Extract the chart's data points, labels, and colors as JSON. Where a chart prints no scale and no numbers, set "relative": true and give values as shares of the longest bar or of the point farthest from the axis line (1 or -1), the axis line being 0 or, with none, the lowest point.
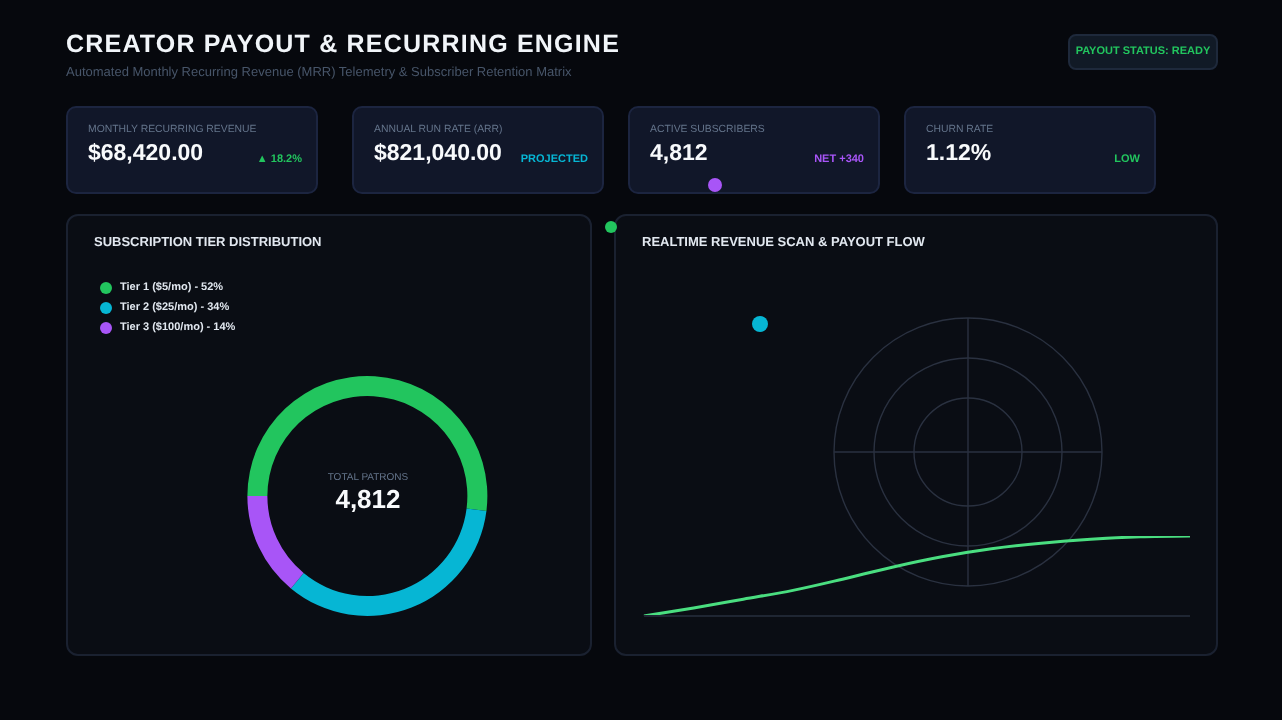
{
  "chart_data": [
    {
      "type": "other",
      "title": "CREATOR PAYOUT & RECURRING ENGINE",
      "subtitle": "Automated Monthly Recurring Revenue (MRR) Telemetry & Subscriber Retention Matrix",
      "annotations": [
        "PAYOUT STATUS: READY",
        "MONTHLY RECURRING REVENUE",
        "$68,420.00",
        "▲ 18.2%",
        "ANNUAL RUN RATE (ARR)",
        "$821,040.00",
        "PROJECTED",
        "ACTIVE SUBSCRIBERS",
        "4,812",
        "NET +340",
        "CHURN RATE",
        "1.12%",
        "LOW"
      ]
    },
    {
      "type": "donut",
      "title": "SUBSCRIPTION TIER DISTRIBUTION",
      "categories": [
        "Tier 1 ($5/mo) - 52%",
        "Tier 2 ($25/mo) - 34%",
        "Tier 3 ($100/mo) - 14%"
      ],
      "values": [
        52,
        34,
        14
      ],
      "colors": [
        "#22c55e",
        "#06b6d4",
        "#a855f7"
      ],
      "legend": "top left",
      "annotations": [
        "TOTAL PATRONS",
        "4,812"
      ]
    },
    {
      "type": "line",
      "title": "REALTIME REVENUE SCAN & PAYOUT FLOW",
      "relative": true,
      "categories": [
        null,
        null,
        null,
        null,
        null,
        null,
        null,
        null,
        null,
        null,
        null,
        null
      ],
      "series": [
        {
          "color": "#4ade80",
          "values": [
            0,
            0.1,
            0.21,
            0.32,
            0.46,
            0.61,
            0.74,
            0.84,
            0.91,
            0.96,
            0.99,
            1
          ]
        }
      ]
    }
  ]
}
